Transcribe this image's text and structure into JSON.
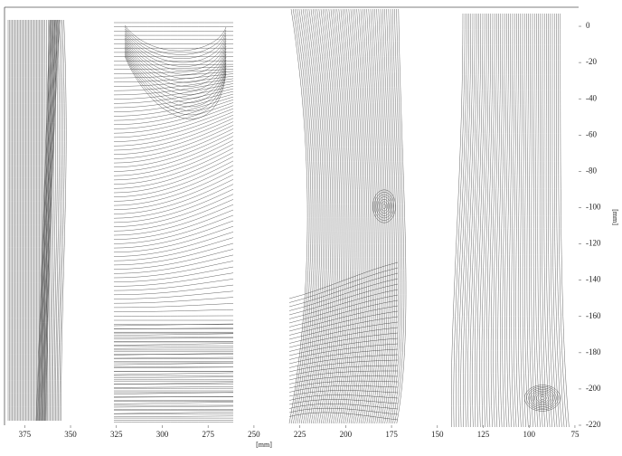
{
  "chart_data": {
    "type": "streamlines",
    "xlabel": "[mm]",
    "ylabel": "[mm]",
    "xlim": [
      386,
      73
    ],
    "ylim": [
      -220,
      10.5
    ],
    "xticks": [
      375,
      350,
      325,
      300,
      275,
      250,
      225,
      200,
      175,
      150,
      125,
      100,
      75
    ],
    "yticks": [
      0,
      -20,
      -40,
      -60,
      -80,
      -100,
      -120,
      -140,
      -160,
      -180,
      -200,
      -220
    ]
  }
}
